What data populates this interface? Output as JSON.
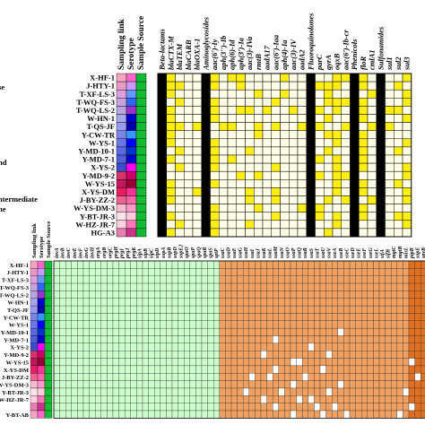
{
  "chart_data": [
    {
      "type": "heatmap",
      "left_labels": [
        "se",
        "nd",
        "ntermediate",
        "ne"
      ],
      "strip_headers": [
        "Sampling link",
        "Serotype",
        "Sample Source"
      ],
      "rows": [
        "X-HF-1",
        "J-HTY-1",
        "T-XF-LS-3",
        "T-WQ-FS-3",
        "T-WQ-LS-2",
        "W-HN-1",
        "T-QS-JF",
        "Y-CW-TR",
        "W-YS-1",
        "Y-MD-10-1",
        "Y-MD-7-1",
        "X-YS-2",
        "Y-MD-9-2",
        "W-YS-15",
        "X-YS-DM",
        "J-BY-ZZ-2",
        "W-YS-DM-3",
        "Y-BT-JR-3",
        "W-HZ-JR-7",
        "HG-A3"
      ],
      "link_colors": [
        "#f4a6c0",
        "#e99ac6",
        "#dda0dd",
        "#c8a2dc",
        "#b9a6e0",
        "#a7a7ea",
        "#9a9cf0",
        "#7b85e8",
        "#6a78e6",
        "#5a69e0",
        "#4f5fd8",
        "#3d4ccd",
        "#d6336c",
        "#c2185b",
        "#e91e63",
        "#f06292",
        "#f8bbd0",
        "#fce4ec",
        "#ffd1e0",
        "#e57fb0"
      ],
      "sero_colors": [
        "#ff66cc",
        "#cc99ff",
        "#6699ff",
        "#3366ff",
        "#9933cc",
        "#0000cc",
        "#0000aa",
        "#3399ff",
        "#0000ff",
        "#0033cc",
        "#0000cc",
        "#ff00ff",
        "#cc0066",
        "#990033",
        "#ff3399",
        "#ff66aa",
        "#ff99cc",
        "#ffccdd",
        "#ff77bb",
        "#cc3388"
      ],
      "source_color": "#11bb33",
      "columns": [
        "Beta-lactams",
        "blaCTX-M",
        "blaTEM",
        "blaCARB",
        "blaOXA-1",
        "Aminoglycosides",
        "aac(6')-Iy",
        "aph(3'')-Ib",
        "aph(6)-Id",
        "aph(3')-Ia",
        "aac(3)-IVa",
        "rmtB",
        "aadA17",
        "aac(6')-Iaa",
        "aph(4)-Ia",
        "aac(3)-IV",
        "aadA2",
        "Fluoroquinolones",
        "parC",
        "gyrA",
        "oqxB",
        "aac(6')-Ib-cr",
        "Phenicols",
        "floR",
        "cmlA1",
        "Sulfonamides",
        "sul1",
        "sul2",
        "sul3"
      ],
      "category_columns": [
        0,
        5,
        17,
        22,
        25
      ],
      "values": [
        [
          1,
          1,
          0,
          0,
          0,
          1,
          1,
          0,
          1,
          1,
          0,
          0,
          0,
          0,
          1,
          0,
          0,
          1,
          0,
          0,
          1,
          1,
          1,
          1,
          0,
          1,
          0,
          0,
          1
        ],
        [
          1,
          1,
          1,
          0,
          0,
          1,
          1,
          0,
          0,
          1,
          0,
          0,
          0,
          0,
          0,
          0,
          0,
          1,
          1,
          1,
          1,
          0,
          1,
          1,
          0,
          1,
          0,
          1,
          0
        ],
        [
          1,
          1,
          0,
          0,
          0,
          1,
          0,
          0,
          0,
          0,
          0,
          1,
          0,
          0,
          1,
          0,
          0,
          1,
          0,
          1,
          0,
          0,
          1,
          0,
          1,
          1,
          0,
          0,
          1
        ],
        [
          1,
          0,
          1,
          0,
          0,
          1,
          1,
          0,
          0,
          0,
          0,
          0,
          0,
          1,
          0,
          0,
          0,
          1,
          0,
          1,
          1,
          1,
          1,
          1,
          0,
          1,
          0,
          0,
          1
        ],
        [
          1,
          1,
          0,
          0,
          0,
          1,
          1,
          0,
          0,
          1,
          1,
          0,
          1,
          0,
          0,
          1,
          0,
          1,
          1,
          0,
          1,
          0,
          1,
          1,
          0,
          1,
          1,
          1,
          0
        ],
        [
          1,
          1,
          0,
          0,
          0,
          1,
          1,
          0,
          0,
          0,
          0,
          0,
          0,
          0,
          0,
          0,
          0,
          1,
          0,
          1,
          0,
          0,
          1,
          1,
          0,
          1,
          0,
          0,
          1
        ],
        [
          1,
          1,
          1,
          0,
          1,
          1,
          0,
          1,
          1,
          0,
          0,
          1,
          0,
          1,
          0,
          0,
          1,
          1,
          1,
          0,
          0,
          1,
          1,
          0,
          1,
          1,
          1,
          0,
          0
        ],
        [
          1,
          1,
          0,
          0,
          0,
          1,
          0,
          0,
          0,
          0,
          0,
          1,
          0,
          0,
          0,
          0,
          0,
          1,
          0,
          1,
          1,
          0,
          1,
          1,
          0,
          1,
          0,
          0,
          0
        ],
        [
          1,
          1,
          0,
          0,
          0,
          1,
          1,
          0,
          0,
          0,
          0,
          0,
          0,
          0,
          0,
          0,
          0,
          1,
          0,
          0,
          1,
          0,
          1,
          1,
          0,
          1,
          0,
          0,
          1
        ],
        [
          1,
          0,
          1,
          0,
          0,
          1,
          1,
          0,
          0,
          0,
          1,
          0,
          0,
          0,
          0,
          0,
          0,
          1,
          0,
          1,
          0,
          0,
          1,
          1,
          0,
          1,
          0,
          1,
          0
        ],
        [
          1,
          1,
          0,
          0,
          0,
          1,
          1,
          0,
          1,
          0,
          0,
          0,
          0,
          0,
          0,
          0,
          0,
          1,
          1,
          0,
          1,
          0,
          1,
          1,
          0,
          1,
          0,
          0,
          0
        ],
        [
          1,
          0,
          1,
          0,
          0,
          1,
          1,
          0,
          0,
          0,
          0,
          0,
          0,
          1,
          0,
          0,
          0,
          1,
          0,
          0,
          1,
          0,
          1,
          1,
          0,
          1,
          0,
          0,
          1
        ],
        [
          1,
          0,
          0,
          0,
          0,
          1,
          0,
          0,
          0,
          1,
          0,
          1,
          0,
          0,
          0,
          0,
          0,
          1,
          1,
          0,
          1,
          1,
          1,
          0,
          0,
          1,
          0,
          0,
          1
        ],
        [
          1,
          1,
          0,
          0,
          0,
          1,
          1,
          0,
          0,
          0,
          0,
          0,
          0,
          0,
          0,
          0,
          0,
          1,
          0,
          0,
          1,
          0,
          1,
          1,
          0,
          1,
          0,
          1,
          0
        ],
        [
          1,
          1,
          0,
          0,
          1,
          1,
          0,
          0,
          0,
          0,
          1,
          0,
          0,
          1,
          0,
          0,
          0,
          1,
          0,
          0,
          1,
          0,
          1,
          1,
          0,
          1,
          0,
          0,
          1
        ],
        [
          1,
          1,
          0,
          0,
          0,
          1,
          0,
          0,
          0,
          0,
          1,
          0,
          0,
          1,
          0,
          0,
          0,
          1,
          0,
          1,
          0,
          1,
          1,
          0,
          1,
          1,
          0,
          0,
          1
        ],
        [
          1,
          0,
          0,
          0,
          0,
          1,
          1,
          0,
          0,
          0,
          0,
          1,
          0,
          0,
          0,
          0,
          1,
          1,
          1,
          0,
          0,
          0,
          1,
          1,
          0,
          1,
          0,
          0,
          0
        ],
        [
          1,
          1,
          0,
          0,
          0,
          1,
          1,
          0,
          0,
          0,
          0,
          0,
          0,
          1,
          0,
          0,
          0,
          1,
          1,
          0,
          1,
          0,
          1,
          1,
          0,
          1,
          0,
          1,
          1
        ],
        [
          1,
          0,
          1,
          0,
          0,
          1,
          1,
          0,
          0,
          0,
          1,
          0,
          0,
          0,
          0,
          0,
          0,
          1,
          0,
          0,
          1,
          0,
          1,
          0,
          0,
          1,
          0,
          0,
          1
        ],
        [
          1,
          1,
          0,
          0,
          0,
          1,
          1,
          0,
          0,
          0,
          0,
          0,
          0,
          0,
          0,
          0,
          0,
          1,
          0,
          1,
          0,
          0,
          1,
          0,
          0,
          1,
          0,
          0,
          0
        ]
      ],
      "colors": {
        "present": "#ffee11",
        "category": "#000000",
        "absent": "#ffffe8"
      }
    },
    {
      "type": "heatmap",
      "strip_headers": [
        "Sampling link",
        "Serotype",
        "Sample Source"
      ],
      "rows": [
        "X-HF-1",
        "J-HTY-1",
        "T-XF-LS-3",
        "T-WQ-FS-3",
        "T-WQ-LS-2",
        "W-HN-1",
        "T-QS-JF",
        "Y-CW-TR",
        "W-YS-1",
        "Y-MD-10-1",
        "Y-MD-7-1",
        "X-YS-2",
        "Y-MD-9-2",
        "W-YS-15",
        "X-YS-DM",
        "J-BY-ZZ-2",
        "W-YS-DM-3",
        "Y-BT-JR-3",
        "W-HZ-JR-7",
        "HG-A3",
        "Y-BT-AB"
      ],
      "row_labels_shown": [
        "X-HF-1",
        "J-HTY-1",
        "T-XF-LS-3",
        "T-WQ-FS-3",
        "T-WQ-LS-2",
        "W-HN-1",
        "T-QS-JF",
        "Y-CW-TR",
        "W-YS-1",
        "Y-MD-10-1",
        "Y-MD-7-1",
        "X-YS-2",
        "Y-MD-9-2",
        "W-YS-15",
        "X-YS-DM",
        "J-BY-ZZ-2",
        "W-YS-DM-3",
        "Y-BT-JR-3",
        "W-HZ-JR-7",
        "Y-BT-AB"
      ],
      "columns": [
        "invA",
        "invB",
        "invC",
        "invE",
        "invF",
        "invG",
        "invH",
        "orgA",
        "orgB",
        "orgC",
        "prgH",
        "prgI",
        "prgJ",
        "prgK",
        "sipA",
        "sipB",
        "sipC",
        "sipD",
        "sopA",
        "sopB",
        "sopD",
        "sopE2",
        "spaO",
        "spaP",
        "spaQ",
        "spaR",
        "spaS",
        "sptP",
        "ssaC",
        "ssaD",
        "ssaE",
        "ssaG",
        "ssaH",
        "ssaI",
        "ssaJ",
        "ssaK",
        "ssaL",
        "ssaM",
        "ssaN",
        "ssaO",
        "ssaP",
        "ssaQ",
        "ssaR",
        "ssaS",
        "ssaT",
        "ssaU",
        "ssaV",
        "sseA",
        "sseB",
        "sseC",
        "sseD",
        "sseE",
        "sseF",
        "sseG",
        "sseL",
        "sifA",
        "sifB",
        "mgtC",
        "mgtB",
        "misL",
        "pipB",
        "sopE",
        "spvB",
        "spvC",
        "spvR"
      ],
      "groups": [
        {
          "from": 0,
          "to": 27,
          "color": "#ccffcc"
        },
        {
          "from": 28,
          "to": 59,
          "color": "#f0a060"
        },
        {
          "from": 60,
          "to": 64,
          "color": "#e07020"
        }
      ],
      "absent_color": "#ffffff",
      "absent": [
        [
          10,
          37
        ],
        [
          12,
          35
        ],
        [
          12,
          46
        ],
        [
          13,
          40
        ],
        [
          13,
          41
        ],
        [
          14,
          37
        ],
        [
          14,
          45
        ],
        [
          15,
          33
        ],
        [
          15,
          36
        ],
        [
          15,
          42
        ],
        [
          16,
          40
        ],
        [
          16,
          48
        ],
        [
          17,
          32
        ],
        [
          17,
          38
        ],
        [
          17,
          46
        ],
        [
          18,
          35
        ],
        [
          18,
          41
        ],
        [
          18,
          43
        ],
        [
          19,
          37
        ],
        [
          19,
          44
        ],
        [
          19,
          47
        ],
        [
          20,
          40
        ],
        [
          20,
          45
        ],
        [
          20,
          49
        ],
        [
          13,
          60
        ],
        [
          15,
          61
        ],
        [
          17,
          59
        ],
        [
          19,
          60
        ],
        [
          20,
          58
        ],
        [
          11,
          43
        ],
        [
          9,
          48
        ]
      ]
    }
  ]
}
